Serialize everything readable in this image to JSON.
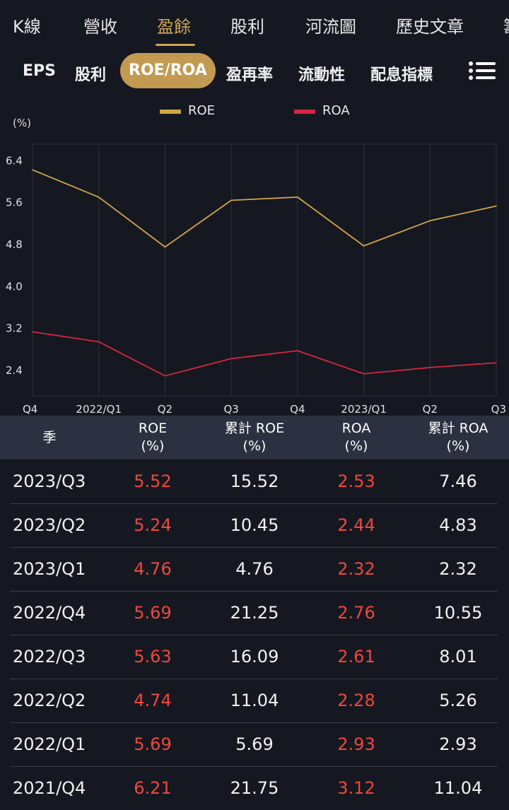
{
  "top_tabs": [
    "K線",
    "營收",
    "盈餘",
    "股利",
    "河流圖",
    "歷史文章",
    "籌"
  ],
  "sub_tabs": [
    "EPS",
    "股利",
    "ROE/ROA",
    "盈再率",
    "流動性",
    "配息指標"
  ],
  "legend": {
    "roe": "ROE",
    "roa": "ROA"
  },
  "colors": {
    "roe": "#d1a54a",
    "roa": "#d4263f",
    "accent": "#c29a52",
    "red_value": "#f0473d"
  },
  "chart_data": {
    "type": "line",
    "unit_label": "(%)",
    "x": [
      "Q4",
      "2022/Q1",
      "Q2",
      "Q3",
      "Q4",
      "2023/Q1",
      "Q2",
      "Q3"
    ],
    "series": [
      {
        "name": "ROE",
        "values": [
          6.21,
          5.69,
          4.74,
          5.63,
          5.69,
          4.76,
          5.24,
          5.52
        ]
      },
      {
        "name": "ROA",
        "values": [
          3.12,
          2.93,
          2.28,
          2.61,
          2.76,
          2.32,
          2.44,
          2.53
        ]
      }
    ],
    "y_ticks": [
      "6.4",
      "5.6",
      "4.8",
      "4.0",
      "3.2",
      "2.4"
    ],
    "ylim": [
      1.9,
      6.7
    ],
    "grid": true
  },
  "table": {
    "headers": [
      {
        "line1": "季",
        "line2": ""
      },
      {
        "line1": "ROE",
        "line2": "(%)"
      },
      {
        "line1": "累計 ROE",
        "line2": "(%)"
      },
      {
        "line1": "ROA",
        "line2": "(%)"
      },
      {
        "line1": "累計 ROA",
        "line2": "(%)"
      }
    ],
    "rows": [
      {
        "season": "2023/Q3",
        "roe": "5.52",
        "cum_roe": "15.52",
        "roa": "2.53",
        "cum_roa": "7.46"
      },
      {
        "season": "2023/Q2",
        "roe": "5.24",
        "cum_roe": "10.45",
        "roa": "2.44",
        "cum_roa": "4.83"
      },
      {
        "season": "2023/Q1",
        "roe": "4.76",
        "cum_roe": "4.76",
        "roa": "2.32",
        "cum_roa": "2.32"
      },
      {
        "season": "2022/Q4",
        "roe": "5.69",
        "cum_roe": "21.25",
        "roa": "2.76",
        "cum_roa": "10.55"
      },
      {
        "season": "2022/Q3",
        "roe": "5.63",
        "cum_roe": "16.09",
        "roa": "2.61",
        "cum_roa": "8.01"
      },
      {
        "season": "2022/Q2",
        "roe": "4.74",
        "cum_roe": "11.04",
        "roa": "2.28",
        "cum_roa": "5.26"
      },
      {
        "season": "2022/Q1",
        "roe": "5.69",
        "cum_roe": "5.69",
        "roa": "2.93",
        "cum_roa": "2.93"
      },
      {
        "season": "2021/Q4",
        "roe": "6.21",
        "cum_roe": "21.75",
        "roa": "3.12",
        "cum_roa": "11.04"
      }
    ]
  }
}
